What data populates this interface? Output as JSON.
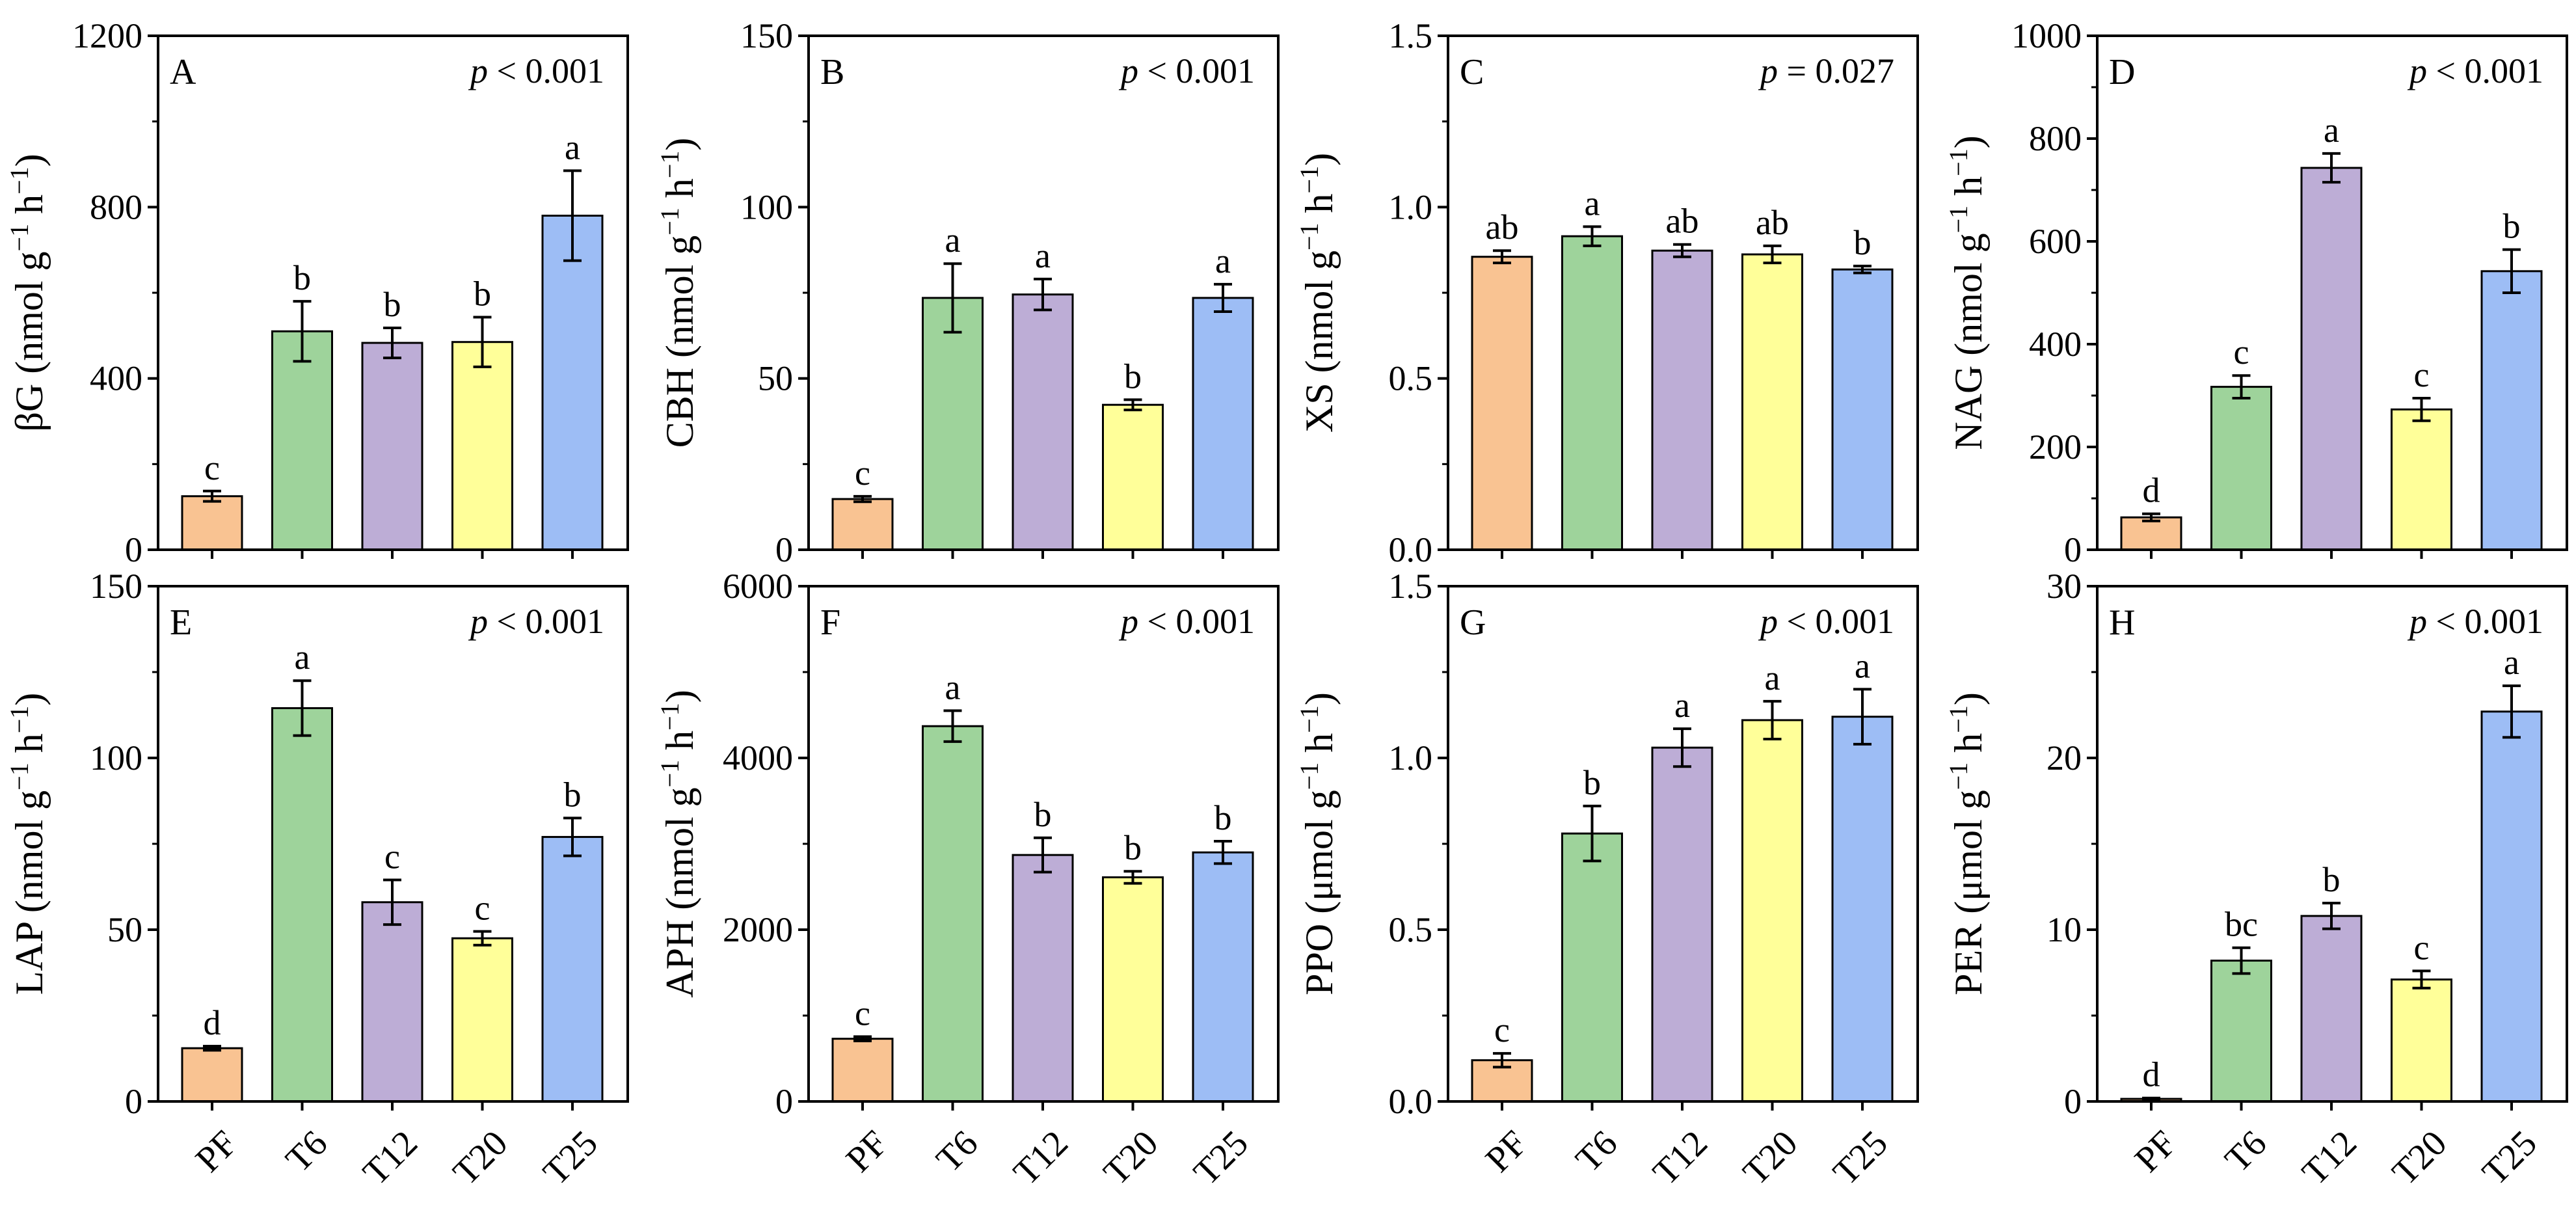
{
  "figure": {
    "categories": [
      "PF",
      "T6",
      "T12",
      "T20",
      "T25"
    ],
    "bar_colors": [
      "#F9C392",
      "#9ED39B",
      "#BDADD6",
      "#FFFF99",
      "#9DBDF5"
    ]
  },
  "chart_data": [
    {
      "type": "bar",
      "panel": "A",
      "title": "",
      "ylabel_parts": [
        "βG (nmol g",
        "−1",
        " h",
        "−1",
        ")"
      ],
      "pvalue_prefix": "p",
      "pvalue_text": " < 0.001",
      "ylim": [
        0,
        1200
      ],
      "yticks": [
        0,
        400,
        800,
        1200
      ],
      "yticklabels": [
        "0",
        "400",
        "800",
        "1200"
      ],
      "categories": [
        "PF",
        "T6",
        "T12",
        "T20",
        "T25"
      ],
      "values": [
        125,
        510,
        483,
        485,
        780
      ],
      "errors": [
        12,
        70,
        35,
        58,
        105
      ],
      "letters": [
        "c",
        "b",
        "b",
        "b",
        "a"
      ]
    },
    {
      "type": "bar",
      "panel": "B",
      "title": "",
      "ylabel_parts": [
        "CBH (nmol g",
        "−1",
        " h",
        "−1",
        ")"
      ],
      "pvalue_prefix": "p",
      "pvalue_text": " < 0.001",
      "ylim": [
        0,
        150
      ],
      "yticks": [
        0,
        50,
        100,
        150
      ],
      "yticklabels": [
        "0",
        "50",
        "100",
        "150"
      ],
      "categories": [
        "PF",
        "T6",
        "T12",
        "T20",
        "T25"
      ],
      "values": [
        14.8,
        73.5,
        74.5,
        42.3,
        73.5
      ],
      "errors": [
        0.8,
        10,
        4.5,
        1.5,
        4
      ],
      "letters": [
        "c",
        "a",
        "a",
        "b",
        "a"
      ]
    },
    {
      "type": "bar",
      "panel": "C",
      "title": "",
      "ylabel_parts": [
        "XS (nmol g",
        "−1",
        " h",
        "−1",
        ")"
      ],
      "pvalue_prefix": "p",
      "pvalue_text": " = 0.027",
      "ylim": [
        0,
        1.5
      ],
      "yticks": [
        0,
        0.5,
        1.0,
        1.5
      ],
      "yticklabels": [
        "0.0",
        "0.5",
        "1.0",
        "1.5"
      ],
      "categories": [
        "PF",
        "T6",
        "T12",
        "T20",
        "T25"
      ],
      "values": [
        0.855,
        0.915,
        0.873,
        0.862,
        0.818
      ],
      "errors": [
        0.018,
        0.028,
        0.018,
        0.025,
        0.01
      ],
      "letters": [
        "ab",
        "a",
        "ab",
        "ab",
        "b"
      ]
    },
    {
      "type": "bar",
      "panel": "D",
      "title": "",
      "ylabel_parts": [
        "NAG (nmol g",
        "−1",
        " h",
        "−1",
        ")"
      ],
      "pvalue_prefix": "p",
      "pvalue_text": " < 0.001",
      "ylim": [
        0,
        1000
      ],
      "yticks": [
        0,
        200,
        400,
        600,
        800,
        1000
      ],
      "yticklabels": [
        "0",
        "200",
        "400",
        "600",
        "800",
        "1000"
      ],
      "categories": [
        "PF",
        "T6",
        "T12",
        "T20",
        "T25"
      ],
      "values": [
        63,
        317,
        743,
        273,
        542
      ],
      "errors": [
        7,
        22,
        28,
        22,
        42
      ],
      "letters": [
        "d",
        "c",
        "a",
        "c",
        "b"
      ]
    },
    {
      "type": "bar",
      "panel": "E",
      "title": "",
      "ylabel_parts": [
        "LAP (nmol g",
        "−1",
        " h",
        "−1",
        ")"
      ],
      "pvalue_prefix": "p",
      "pvalue_text": " < 0.001",
      "ylim": [
        0,
        150
      ],
      "yticks": [
        0,
        50,
        100,
        150
      ],
      "yticklabels": [
        "0",
        "50",
        "100",
        "150"
      ],
      "categories": [
        "PF",
        "T6",
        "T12",
        "T20",
        "T25"
      ],
      "values": [
        15.5,
        114.5,
        58,
        47.5,
        77
      ],
      "errors": [
        0.6,
        8,
        6.5,
        2,
        5.5
      ],
      "letters": [
        "d",
        "a",
        "c",
        "c",
        "b"
      ]
    },
    {
      "type": "bar",
      "panel": "F",
      "title": "",
      "ylabel_parts": [
        "APH (nmol g",
        "−1",
        " h",
        "−1",
        ")"
      ],
      "pvalue_prefix": "p",
      "pvalue_text": " < 0.001",
      "ylim": [
        0,
        6000
      ],
      "yticks": [
        0,
        2000,
        4000,
        6000
      ],
      "yticklabels": [
        "0",
        "2000",
        "4000",
        "6000"
      ],
      "categories": [
        "PF",
        "T6",
        "T12",
        "T20",
        "T25"
      ],
      "values": [
        730,
        4370,
        2870,
        2610,
        2900
      ],
      "errors": [
        25,
        180,
        200,
        70,
        130
      ],
      "letters": [
        "c",
        "a",
        "b",
        "b",
        "b"
      ]
    },
    {
      "type": "bar",
      "panel": "G",
      "title": "",
      "ylabel_parts": [
        "PPO (μmol g",
        "−1",
        " h",
        "−1",
        ")"
      ],
      "pvalue_prefix": "p",
      "pvalue_text": " < 0.001",
      "ylim": [
        0,
        1.5
      ],
      "yticks": [
        0,
        0.5,
        1.0,
        1.5
      ],
      "yticklabels": [
        "0.0",
        "0.5",
        "1.0",
        "1.5"
      ],
      "categories": [
        "PF",
        "T6",
        "T12",
        "T20",
        "T25"
      ],
      "values": [
        0.12,
        0.78,
        1.03,
        1.11,
        1.12
      ],
      "errors": [
        0.02,
        0.08,
        0.055,
        0.055,
        0.08
      ],
      "letters": [
        "c",
        "b",
        "a",
        "a",
        "a"
      ]
    },
    {
      "type": "bar",
      "panel": "H",
      "title": "",
      "ylabel_parts": [
        "PER (μmol g",
        "−1",
        " h",
        "−1",
        ")"
      ],
      "pvalue_prefix": "p",
      "pvalue_text": " < 0.001",
      "ylim": [
        0,
        30
      ],
      "yticks": [
        0,
        10,
        20,
        30
      ],
      "yticklabels": [
        "0",
        "10",
        "20",
        "30"
      ],
      "categories": [
        "PF",
        "T6",
        "T12",
        "T20",
        "T25"
      ],
      "values": [
        0.15,
        8.2,
        10.8,
        7.1,
        22.7
      ],
      "errors": [
        0.05,
        0.75,
        0.75,
        0.5,
        1.5
      ],
      "letters": [
        "d",
        "bc",
        "b",
        "c",
        "a"
      ]
    }
  ]
}
